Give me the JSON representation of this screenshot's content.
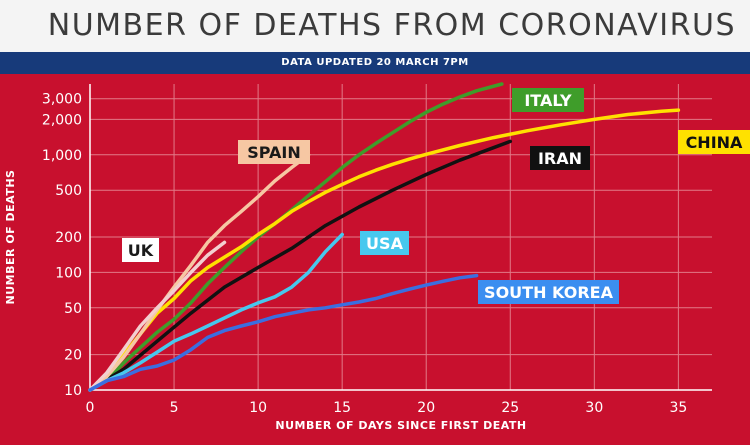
{
  "header": {
    "title": "NUMBER OF DEATHS FROM CORONAVIRUS",
    "subtitle": "DATA UPDATED 20 MARCH 7PM"
  },
  "colors": {
    "background": "#c8102e",
    "header_band": "#173a7a",
    "grid": "#e27a88"
  },
  "chart_data": {
    "type": "line",
    "title": "NUMBER OF DEATHS FROM CORONAVIRUS",
    "subtitle": "DATA UPDATED 20 MARCH 7PM",
    "xlabel": "NUMBER OF DAYS SINCE FIRST DEATH",
    "ylabel": "NUMBER OF DEATHS",
    "yscale": "log",
    "xlim": [
      0,
      37
    ],
    "ylim": [
      10,
      4000
    ],
    "grid": true,
    "x_ticks": [
      0,
      5,
      10,
      15,
      20,
      25,
      30,
      35
    ],
    "x_tick_labels": [
      "0",
      "5",
      "10",
      "15",
      "20",
      "25",
      "30",
      "35"
    ],
    "y_ticks": [
      10,
      20,
      50,
      100,
      200,
      500,
      1000,
      2000,
      3000
    ],
    "y_tick_labels": [
      "10",
      "20",
      "50",
      "100",
      "200",
      "500",
      "1,000",
      "2,000",
      "3,000"
    ],
    "series": [
      {
        "name": "ITALY",
        "color": "#3f9d2a",
        "label_bg": "#3f9d2a",
        "label_color": "#ffffff",
        "points": [
          [
            0,
            10
          ],
          [
            1,
            12
          ],
          [
            2,
            17
          ],
          [
            3,
            23
          ],
          [
            4,
            31
          ],
          [
            5,
            40
          ],
          [
            6,
            55
          ],
          [
            7,
            80
          ],
          [
            8,
            110
          ],
          [
            9,
            150
          ],
          [
            10,
            200
          ],
          [
            11,
            260
          ],
          [
            12,
            340
          ],
          [
            13,
            450
          ],
          [
            14,
            590
          ],
          [
            15,
            780
          ],
          [
            16,
            1000
          ],
          [
            17,
            1250
          ],
          [
            18,
            1540
          ],
          [
            19,
            1900
          ],
          [
            20,
            2300
          ],
          [
            21,
            2700
          ],
          [
            22,
            3100
          ],
          [
            23,
            3500
          ],
          [
            24.5,
            4000
          ]
        ]
      },
      {
        "name": "CHINA",
        "color": "#ffe100",
        "label_bg": "#ffe100",
        "label_color": "#111111",
        "points": [
          [
            0,
            10
          ],
          [
            1,
            13
          ],
          [
            2,
            20
          ],
          [
            3,
            30
          ],
          [
            4,
            45
          ],
          [
            5,
            60
          ],
          [
            6,
            85
          ],
          [
            7,
            110
          ],
          [
            8,
            135
          ],
          [
            9,
            165
          ],
          [
            10,
            210
          ],
          [
            11,
            260
          ],
          [
            12,
            330
          ],
          [
            13,
            400
          ],
          [
            14,
            480
          ],
          [
            15,
            560
          ],
          [
            16,
            650
          ],
          [
            17,
            740
          ],
          [
            18,
            830
          ],
          [
            19,
            920
          ],
          [
            20,
            1010
          ],
          [
            22,
            1200
          ],
          [
            24,
            1400
          ],
          [
            26,
            1600
          ],
          [
            28,
            1800
          ],
          [
            30,
            2000
          ],
          [
            32,
            2200
          ],
          [
            34,
            2350
          ],
          [
            35,
            2400
          ]
        ]
      },
      {
        "name": "IRAN",
        "color": "#111111",
        "label_bg": "#111111",
        "label_color": "#ffffff",
        "points": [
          [
            0,
            10
          ],
          [
            2,
            15
          ],
          [
            4,
            26
          ],
          [
            6,
            45
          ],
          [
            8,
            75
          ],
          [
            10,
            110
          ],
          [
            12,
            160
          ],
          [
            14,
            250
          ],
          [
            16,
            360
          ],
          [
            18,
            500
          ],
          [
            20,
            680
          ],
          [
            22,
            900
          ],
          [
            24,
            1150
          ],
          [
            25,
            1300
          ]
        ]
      },
      {
        "name": "SPAIN",
        "color": "#f6c7a3",
        "label_bg": "#f6c7a3",
        "label_color": "#1a1a1a",
        "points": [
          [
            0,
            10
          ],
          [
            1,
            13
          ],
          [
            2,
            19
          ],
          [
            3,
            30
          ],
          [
            4,
            48
          ],
          [
            5,
            75
          ],
          [
            6,
            115
          ],
          [
            7,
            180
          ],
          [
            8,
            250
          ],
          [
            9,
            330
          ],
          [
            10,
            440
          ],
          [
            11,
            600
          ],
          [
            12,
            780
          ],
          [
            13,
            1000
          ]
        ]
      },
      {
        "name": "UK",
        "color": "#f3cfcf",
        "label_bg": "#ffffff",
        "label_color": "#1a1a1a",
        "points": [
          [
            0,
            10
          ],
          [
            1,
            14
          ],
          [
            2,
            22
          ],
          [
            3,
            35
          ],
          [
            4,
            50
          ],
          [
            5,
            70
          ],
          [
            6,
            100
          ],
          [
            7,
            140
          ],
          [
            8,
            180
          ]
        ]
      },
      {
        "name": "USA",
        "color": "#47c8ee",
        "label_bg": "#47c8ee",
        "label_color": "#ffffff",
        "points": [
          [
            0,
            10
          ],
          [
            1,
            12
          ],
          [
            2,
            14
          ],
          [
            3,
            17
          ],
          [
            4,
            21
          ],
          [
            5,
            26
          ],
          [
            6,
            30
          ],
          [
            7,
            35
          ],
          [
            8,
            41
          ],
          [
            9,
            48
          ],
          [
            10,
            55
          ],
          [
            11,
            62
          ],
          [
            12,
            75
          ],
          [
            13,
            100
          ],
          [
            14,
            150
          ],
          [
            15,
            210
          ]
        ]
      },
      {
        "name": "SOUTH KOREA",
        "color": "#3b6ee0",
        "label_bg": "#3b8ef0",
        "label_color": "#ffffff",
        "points": [
          [
            0,
            10
          ],
          [
            1,
            12
          ],
          [
            2,
            13
          ],
          [
            3,
            15
          ],
          [
            4,
            16
          ],
          [
            5,
            18
          ],
          [
            6,
            22
          ],
          [
            7,
            28
          ],
          [
            8,
            32
          ],
          [
            9,
            35
          ],
          [
            10,
            38
          ],
          [
            11,
            42
          ],
          [
            12,
            45
          ],
          [
            13,
            48
          ],
          [
            14,
            50
          ],
          [
            15,
            53
          ],
          [
            16,
            56
          ],
          [
            17,
            60
          ],
          [
            18,
            66
          ],
          [
            19,
            72
          ],
          [
            20,
            78
          ],
          [
            21,
            84
          ],
          [
            22,
            90
          ],
          [
            23,
            94
          ]
        ]
      }
    ]
  }
}
